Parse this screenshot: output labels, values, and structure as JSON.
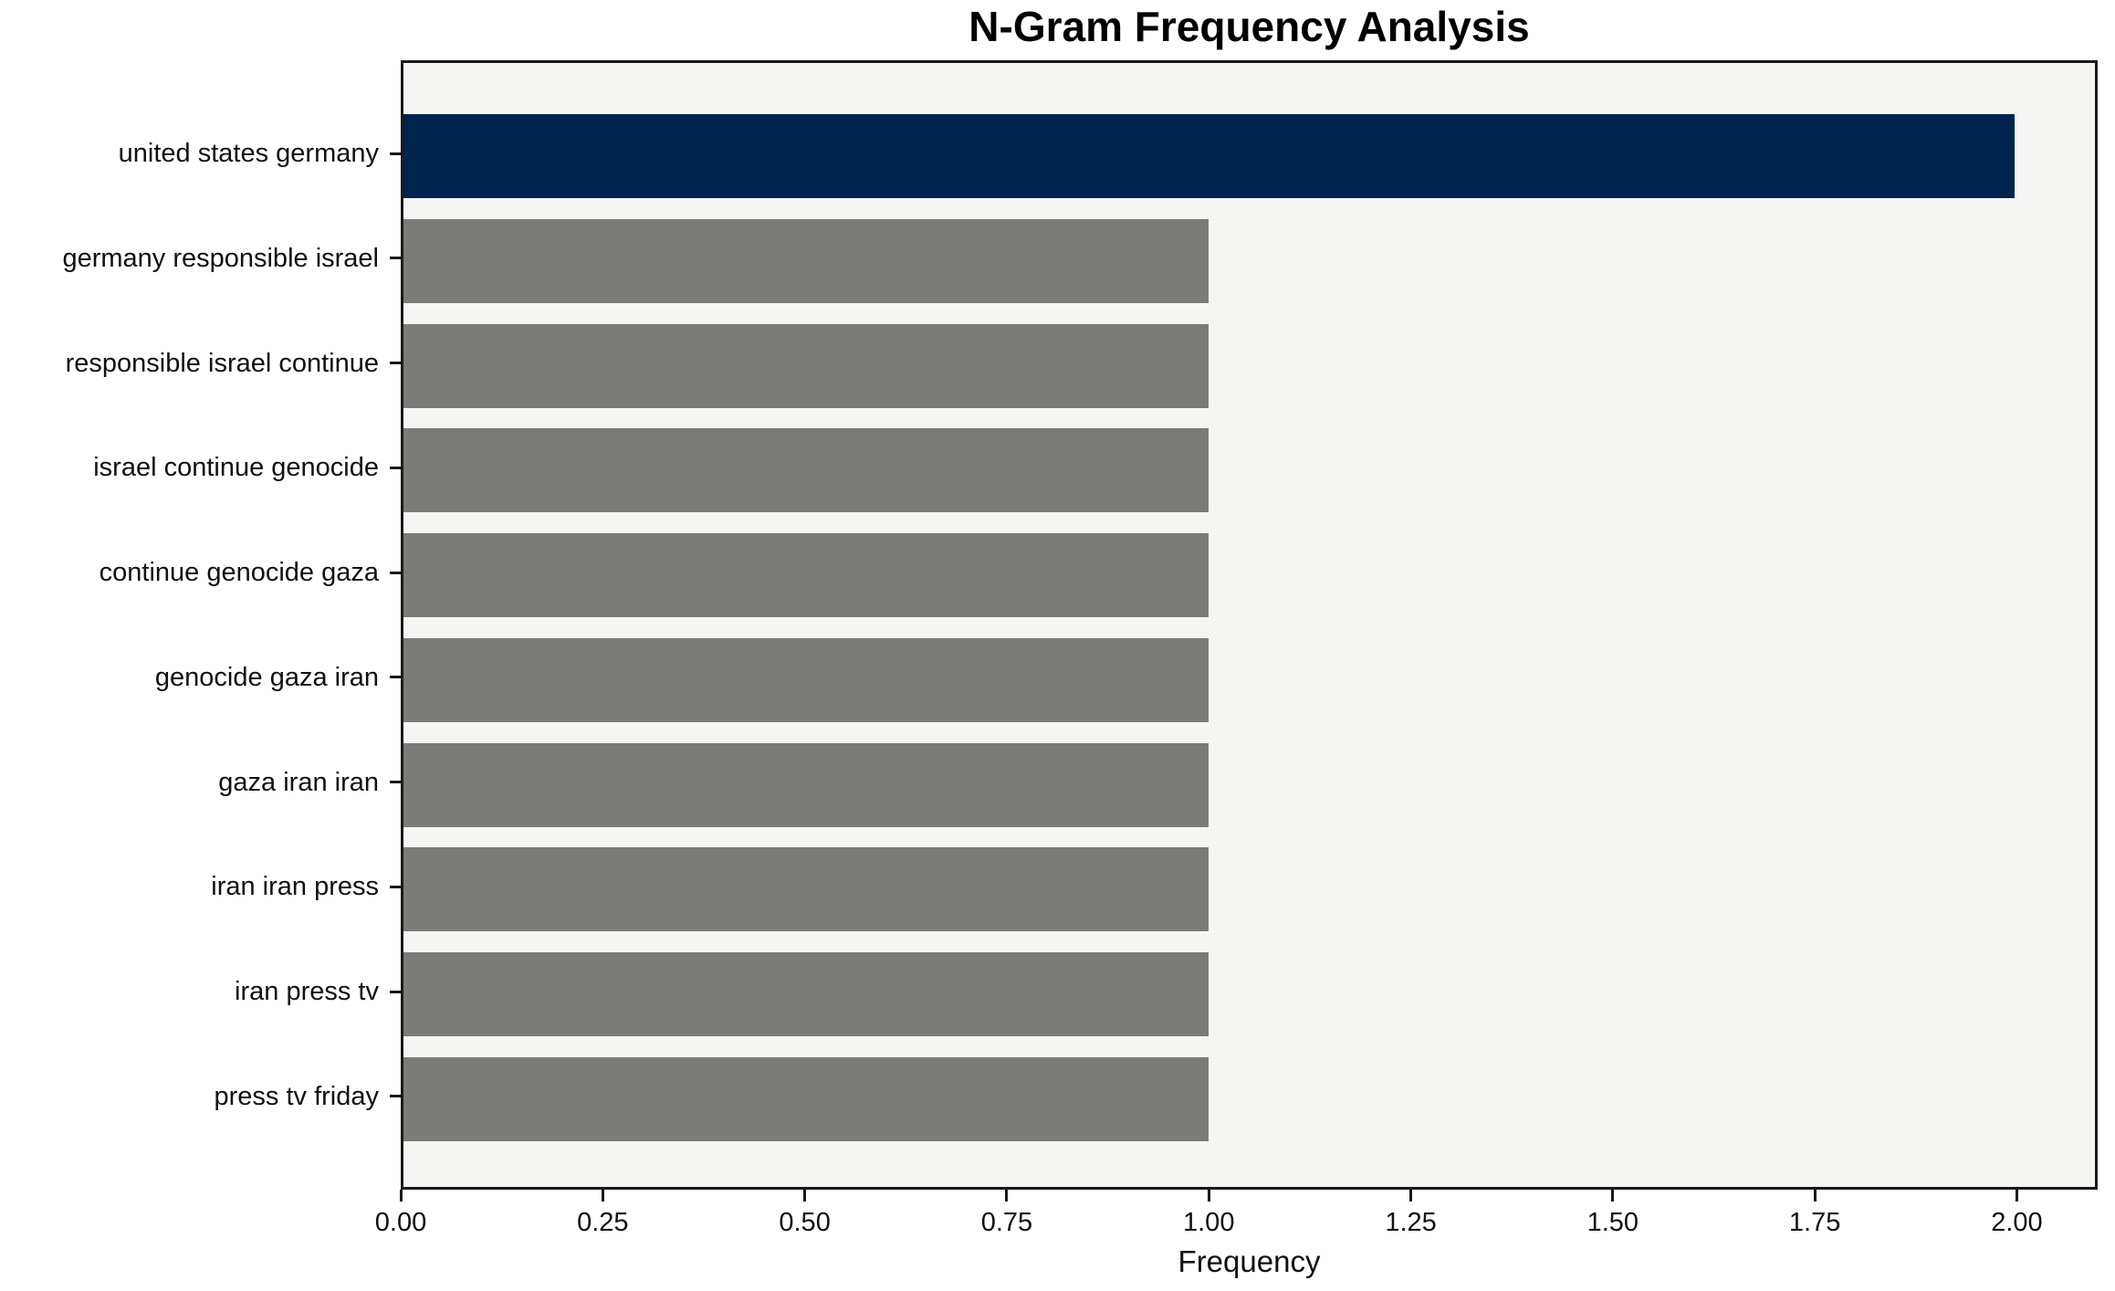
{
  "chart_data": {
    "type": "bar",
    "orientation": "horizontal",
    "title": "N-Gram Frequency Analysis",
    "xlabel": "Frequency",
    "ylabel": "",
    "categories": [
      "united states germany",
      "germany responsible israel",
      "responsible israel continue",
      "israel continue genocide",
      "continue genocide gaza",
      "genocide gaza iran",
      "gaza iran iran",
      "iran iran press",
      "iran press tv",
      "press tv friday"
    ],
    "values": [
      2,
      1,
      1,
      1,
      1,
      1,
      1,
      1,
      1,
      1
    ],
    "bar_colors": [
      "#01244f",
      "#7b7b78",
      "#7b7b78",
      "#7b7b78",
      "#7b7b78",
      "#7b7b78",
      "#7b7b78",
      "#7b7b78",
      "#7b7b78",
      "#7b7b78"
    ],
    "xlim": [
      0,
      2.1
    ],
    "xtick_values": [
      0,
      0.25,
      0.5,
      0.75,
      1.0,
      1.25,
      1.5,
      1.75,
      2.0
    ],
    "xtick_labels": [
      "0.00",
      "0.25",
      "0.50",
      "0.75",
      "1.00",
      "1.25",
      "1.50",
      "1.75",
      "2.00"
    ],
    "grid": false,
    "legend": null,
    "colors": {
      "highlight": "#01244f",
      "bar_default": "#7b7b78",
      "plot_background": "#f5f5f4",
      "figure_background": "#ffffff",
      "spine": "#1a1a1a",
      "text": "#111111"
    }
  }
}
